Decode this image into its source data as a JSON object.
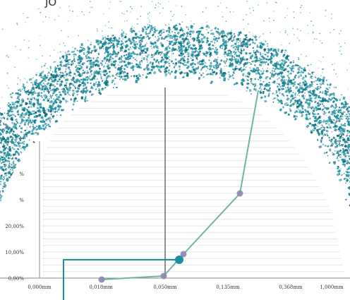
{
  "corner_label": "JO",
  "colors": {
    "particles": "#1a8fa0",
    "particles_dark": "#0d6b78",
    "curve": "#6fb5a4",
    "marker": "#8d86b2",
    "highlight_point": "#1a8fa0",
    "leader_line": "#1a8fa0",
    "gridline": "#e6e6e6",
    "axis": "#888888",
    "plot_bg": "#f2f2f2"
  },
  "chart_data": {
    "type": "line",
    "x_scale": "categorical",
    "x_ticks": [
      "0,000mm",
      "0,018mm",
      "0,050mm",
      "0,135mm",
      "0,368mm",
      "1,000mm"
    ],
    "y_ticks": [
      "0,00%",
      "10,00%",
      "20,00%",
      "%",
      "%"
    ],
    "series": [
      {
        "x": [
          0.018,
          0.05,
          0.07,
          0.3,
          0.38
        ],
        "y": [
          0,
          1,
          9.5,
          32.5,
          80
        ]
      }
    ],
    "highlight_point": {
      "x": 0.06,
      "y": 7.5
    },
    "vertical_marker_x": 0.05,
    "ylim": [
      0,
      80
    ],
    "grid": true
  }
}
